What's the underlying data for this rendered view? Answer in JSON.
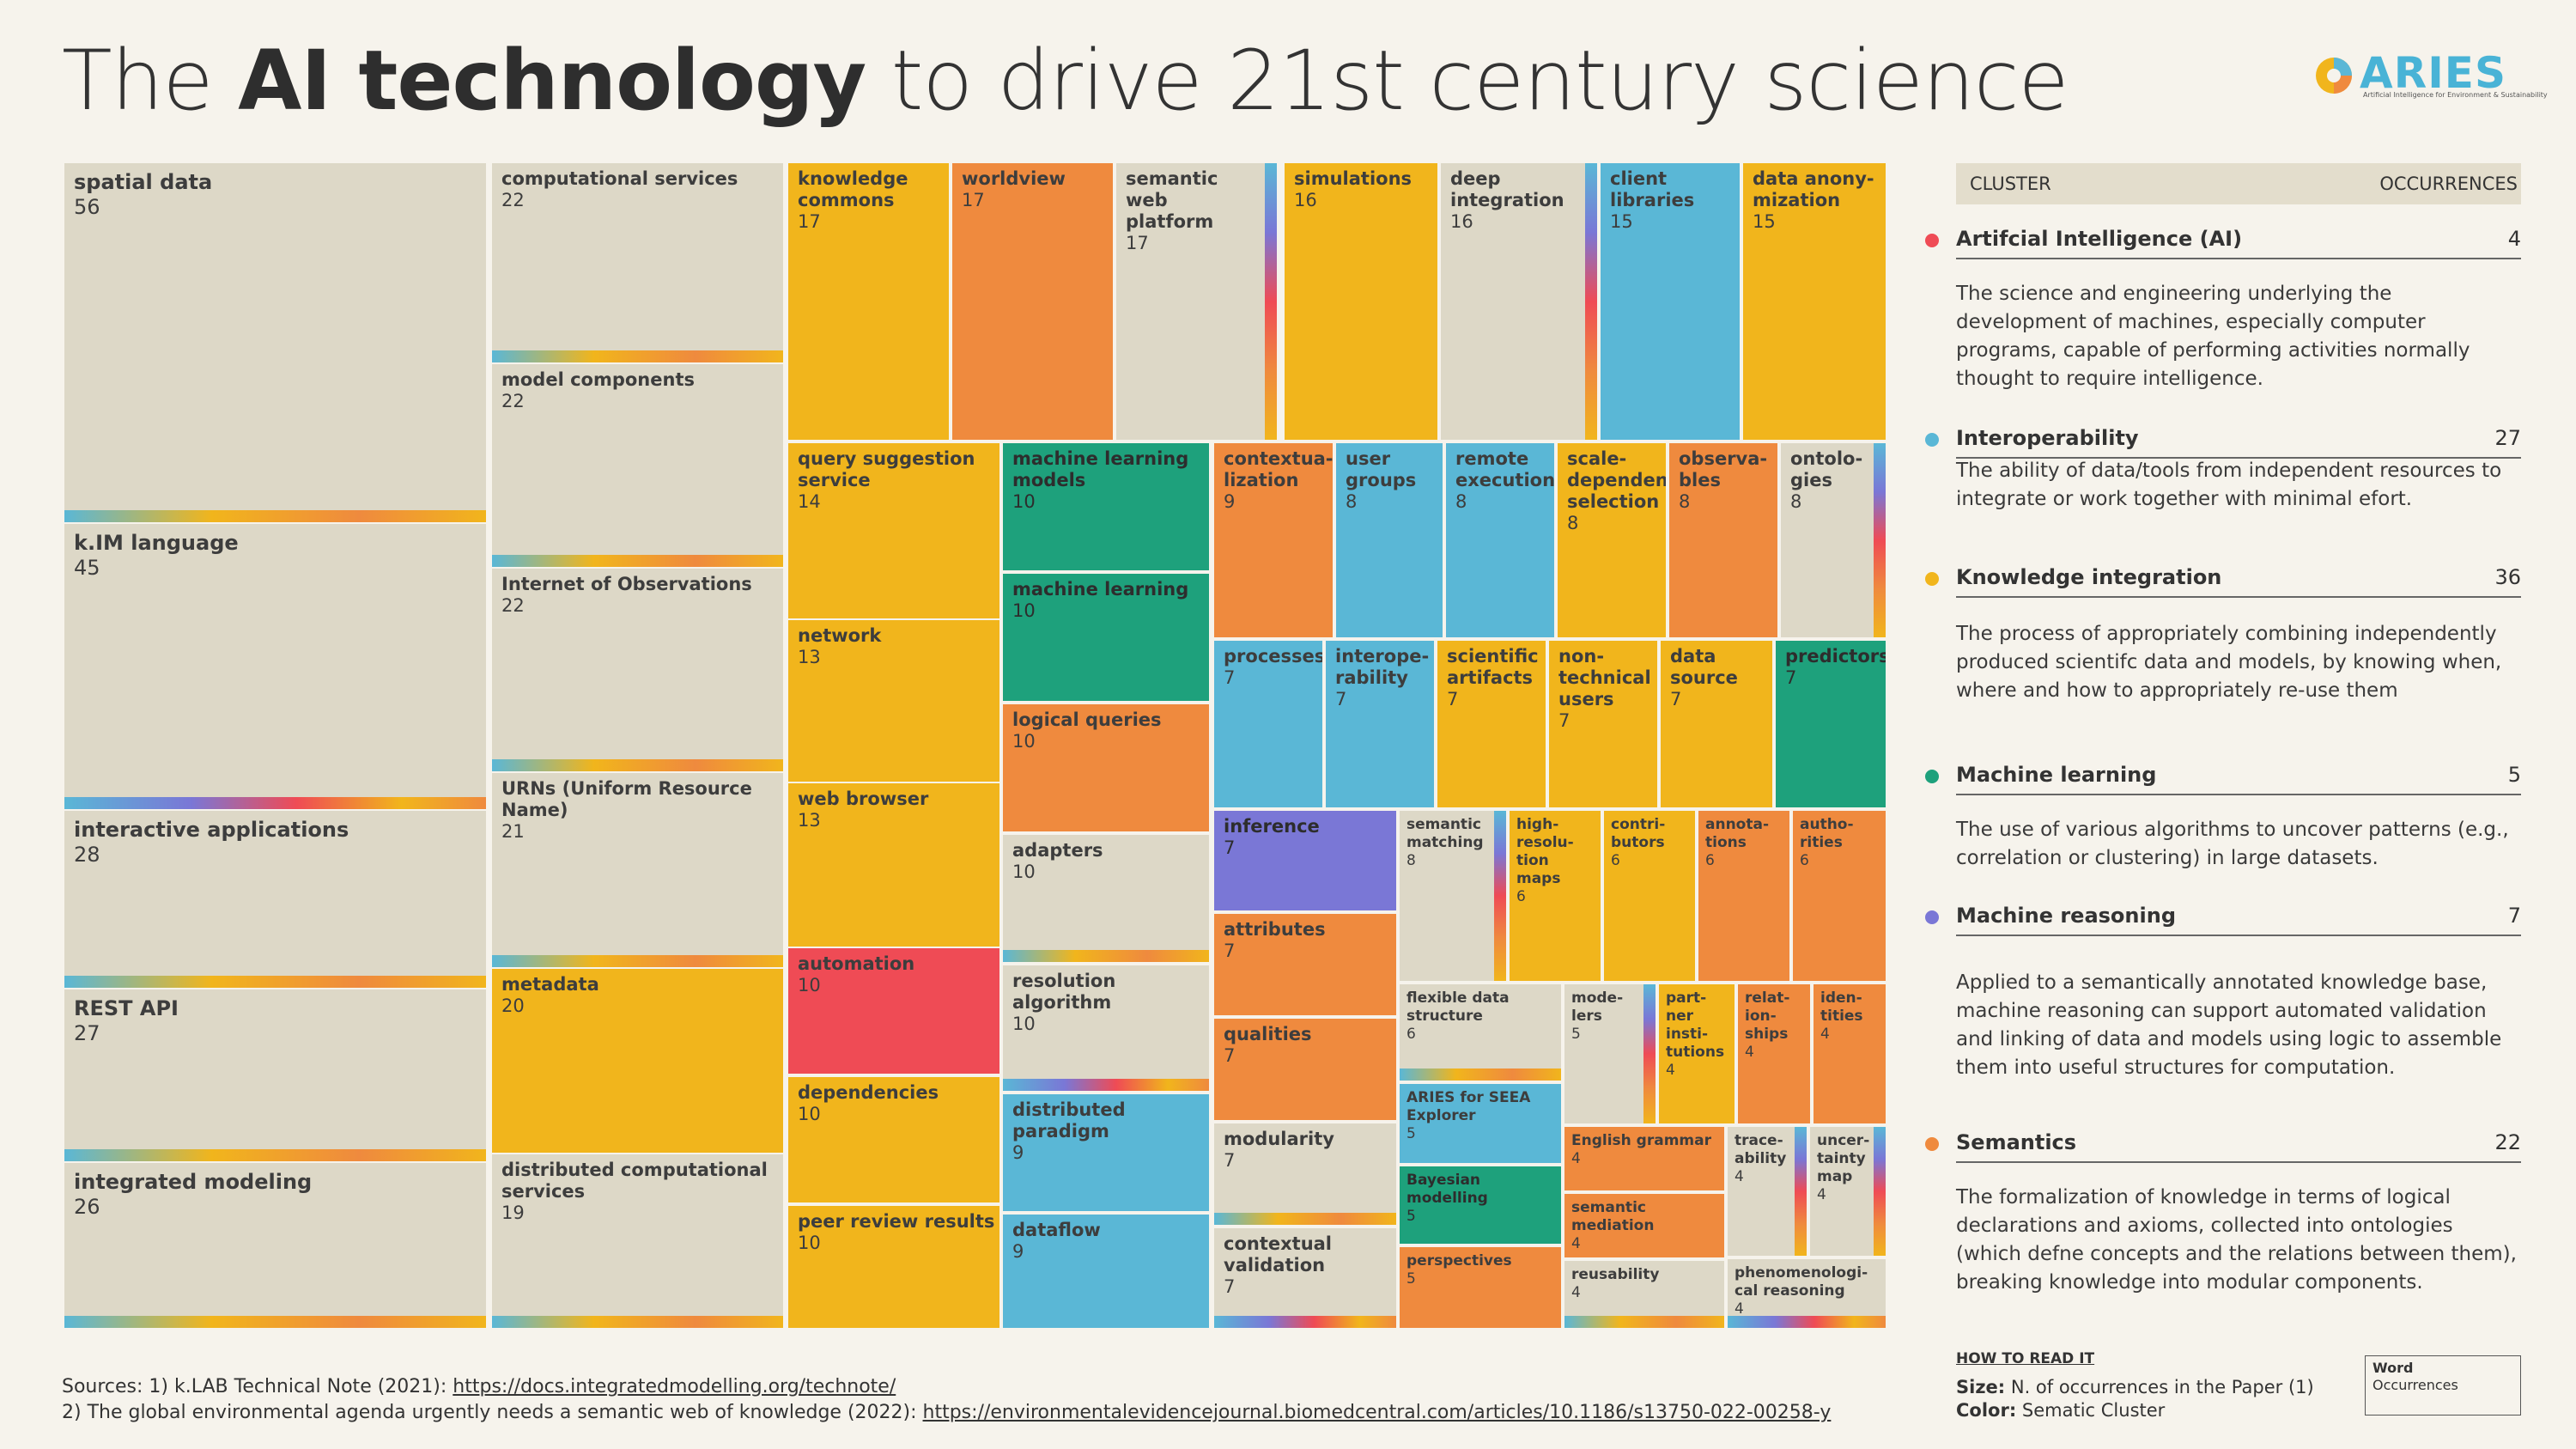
{
  "title": {
    "pre": "The ",
    "bold": "AI technology",
    "post": " to drive 21st century science"
  },
  "logo": {
    "name": "ARIES",
    "tagline": "Artificial Intelligence for Environment & Sustainability"
  },
  "colors": {
    "ai": "#ef4b55",
    "interop": "#5ab7d6",
    "knowledge": "#f1b51c",
    "ml": "#1ea17c",
    "reasoning": "#7a77d6",
    "semantics": "#ef8a3e",
    "neutral": "#ddd8c7"
  },
  "chart_data": {
    "type": "treemap",
    "size_measure": "N. of occurrences in the Paper (1)",
    "color_measure": "Sematic Cluster",
    "items": [
      {
        "word": "spatial data",
        "value": 56,
        "cluster": "neutral"
      },
      {
        "word": "k.IM language",
        "value": 45,
        "cluster": "neutral"
      },
      {
        "word": "interactive applications",
        "value": 28,
        "cluster": "neutral"
      },
      {
        "word": "REST API",
        "value": 27,
        "cluster": "neutral"
      },
      {
        "word": "integrated modeling",
        "value": 26,
        "cluster": "neutral"
      },
      {
        "word": "computational services",
        "value": 22,
        "cluster": "neutral"
      },
      {
        "word": "model components",
        "value": 22,
        "cluster": "neutral"
      },
      {
        "word": "Internet of Observations",
        "value": 22,
        "cluster": "neutral"
      },
      {
        "word": "URNs (Uniform Resource Name)",
        "value": 21,
        "cluster": "neutral"
      },
      {
        "word": "metadata",
        "value": 20,
        "cluster": "knowledge"
      },
      {
        "word": "distributed computational services",
        "value": 19,
        "cluster": "neutral"
      },
      {
        "word": "knowledge commons",
        "value": 17,
        "cluster": "knowledge"
      },
      {
        "word": "worldview",
        "value": 17,
        "cluster": "semantics"
      },
      {
        "word": "semantic web platform",
        "value": 17,
        "cluster": "neutral"
      },
      {
        "word": "simulations",
        "value": 16,
        "cluster": "knowledge"
      },
      {
        "word": "deep integration",
        "value": 16,
        "cluster": "neutral"
      },
      {
        "word": "client libraries",
        "value": 15,
        "cluster": "interop"
      },
      {
        "word": "data anony-mization",
        "value": 15,
        "cluster": "knowledge"
      },
      {
        "word": "query suggestion service",
        "value": 14,
        "cluster": "knowledge"
      },
      {
        "word": "network",
        "value": 13,
        "cluster": "knowledge"
      },
      {
        "word": "web browser",
        "value": 13,
        "cluster": "knowledge"
      },
      {
        "word": "automation",
        "value": 10,
        "cluster": "ai"
      },
      {
        "word": "dependencies",
        "value": 10,
        "cluster": "knowledge"
      },
      {
        "word": "peer review results",
        "value": 10,
        "cluster": "knowledge"
      },
      {
        "word": "machine learning models",
        "value": 10,
        "cluster": "ml"
      },
      {
        "word": "machine learning",
        "value": 10,
        "cluster": "ml"
      },
      {
        "word": "logical queries",
        "value": 10,
        "cluster": "semantics"
      },
      {
        "word": "adapters",
        "value": 10,
        "cluster": "neutral"
      },
      {
        "word": "resolution algorithm",
        "value": 10,
        "cluster": "neutral"
      },
      {
        "word": "distributed paradigm",
        "value": 9,
        "cluster": "interop"
      },
      {
        "word": "dataflow",
        "value": 9,
        "cluster": "interop"
      },
      {
        "word": "contextua-lization",
        "value": 9,
        "cluster": "semantics"
      },
      {
        "word": "user groups",
        "value": 8,
        "cluster": "interop"
      },
      {
        "word": "remote execution",
        "value": 8,
        "cluster": "interop"
      },
      {
        "word": "scale-dependent selection",
        "value": 8,
        "cluster": "knowledge"
      },
      {
        "word": "observa-bles",
        "value": 8,
        "cluster": "semantics"
      },
      {
        "word": "ontolo-gies",
        "value": 8,
        "cluster": "neutral"
      },
      {
        "word": "processes",
        "value": 7,
        "cluster": "interop"
      },
      {
        "word": "interope-rability",
        "value": 7,
        "cluster": "interop"
      },
      {
        "word": "scientific artifacts",
        "value": 7,
        "cluster": "knowledge"
      },
      {
        "word": "non-technical users",
        "value": 7,
        "cluster": "knowledge"
      },
      {
        "word": "data source",
        "value": 7,
        "cluster": "knowledge"
      },
      {
        "word": "predictors",
        "value": 7,
        "cluster": "ml"
      },
      {
        "word": "inference",
        "value": 7,
        "cluster": "reasoning"
      },
      {
        "word": "attributes",
        "value": 7,
        "cluster": "semantics"
      },
      {
        "word": "qualities",
        "value": 7,
        "cluster": "semantics"
      },
      {
        "word": "modularity",
        "value": 7,
        "cluster": "neutral"
      },
      {
        "word": "contextual validation",
        "value": 7,
        "cluster": "neutral"
      },
      {
        "word": "semantic matching",
        "value": 8,
        "cluster": "neutral"
      },
      {
        "word": "high-resolu-tion maps",
        "value": 6,
        "cluster": "knowledge"
      },
      {
        "word": "contri-butors",
        "value": 6,
        "cluster": "knowledge"
      },
      {
        "word": "annota-tions",
        "value": 6,
        "cluster": "semantics"
      },
      {
        "word": "autho-rities",
        "value": 6,
        "cluster": "semantics"
      },
      {
        "word": "flexible data structure",
        "value": 6,
        "cluster": "neutral"
      },
      {
        "word": "ARIES for SEEA Explorer",
        "value": 5,
        "cluster": "interop"
      },
      {
        "word": "Bayesian modelling",
        "value": 5,
        "cluster": "ml"
      },
      {
        "word": "perspectives",
        "value": 5,
        "cluster": "semantics"
      },
      {
        "word": "mode-lers",
        "value": 5,
        "cluster": "neutral"
      },
      {
        "word": "part-ner insti-tutions",
        "value": 4,
        "cluster": "knowledge"
      },
      {
        "word": "relat-ion-ships",
        "value": 4,
        "cluster": "semantics"
      },
      {
        "word": "iden-tities",
        "value": 4,
        "cluster": "semantics"
      },
      {
        "word": "English grammar",
        "value": 4,
        "cluster": "semantics"
      },
      {
        "word": "semantic mediation",
        "value": 4,
        "cluster": "semantics"
      },
      {
        "word": "reusability",
        "value": 4,
        "cluster": "neutral"
      },
      {
        "word": "trace-ability",
        "value": 4,
        "cluster": "neutral"
      },
      {
        "word": "uncer-tainty map",
        "value": 4,
        "cluster": "neutral"
      },
      {
        "word": "phenomenologi-cal reasoning",
        "value": 4,
        "cluster": "neutral"
      }
    ]
  },
  "legend": {
    "header_left": "CLUSTER",
    "header_right": "OCCURRENCES",
    "clusters": [
      {
        "name": "Artifcial Intelligence (AI)",
        "count": "4",
        "color": "#ef4b55",
        "desc": "The science and engineering underlying the development of machines, especially computer programs, capable of performing activities normally thought to require intelligence."
      },
      {
        "name": "Interoperability",
        "count": "27",
        "color": "#5ab7d6",
        "desc": "The ability of data/tools from independent resources to integrate or work together with minimal efort."
      },
      {
        "name": "Knowledge integration",
        "count": "36",
        "color": "#f1b51c",
        "desc": "The process of appropriately combining independently produced scientifc data and models, by knowing when, where and how to appropriately re-use them"
      },
      {
        "name": "Machine learning",
        "count": "5",
        "color": "#1ea17c",
        "desc": "The use of various algorithms to uncover patterns (e.g., correlation or clustering) in large datasets."
      },
      {
        "name": "Machine reasoning",
        "count": "7",
        "color": "#7a77d6",
        "desc": "Applied to a semantically annotated knowledge base, machine reasoning can support automated validation and linking of data and models using logic to assemble them into useful structures for computation."
      },
      {
        "name": "Semantics",
        "count": "22",
        "color": "#ef8a3e",
        "desc": "The formalization of knowledge in terms of logical declarations and axioms, collected into ontologies (which defne concepts and the relations between them), breaking knowledge into modular components."
      }
    ]
  },
  "howto": {
    "heading": "HOW TO READ IT",
    "size_label": "Size:",
    "size_text": " N. of occurrences in the Paper (1)",
    "color_label": "Color:",
    "color_text": " Sematic Cluster",
    "box_word": "Word",
    "box_occ": "Occurrences"
  },
  "sources": {
    "line1_text": "Sources: 1) k.LAB Technical Note (2021): ",
    "line1_link": "https://docs.integratedmodelling.org/technote/",
    "line2_text": "2) The global environmental agenda urgently needs a semantic web of knowledge (2022): ",
    "line2_link": "https://environmentalevidencejournal.biomedcentral.com/articles/10.1186/s13750-022-00258-y"
  }
}
